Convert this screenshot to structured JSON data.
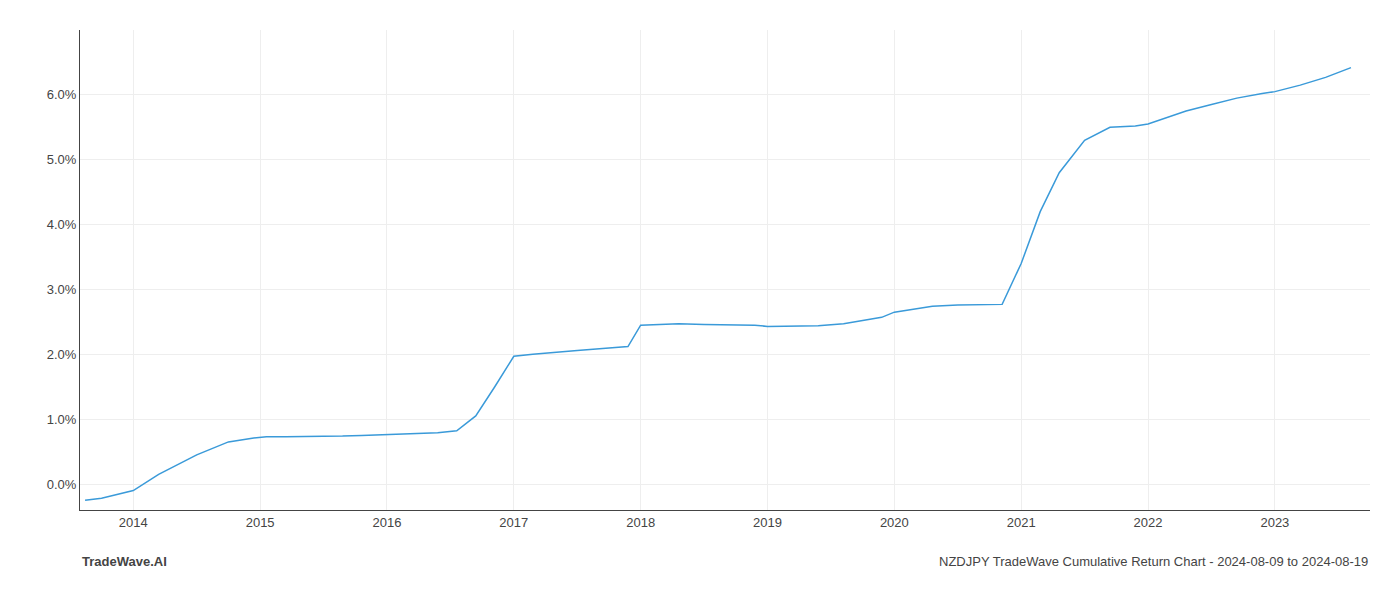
{
  "chart_data": {
    "type": "line",
    "x": [
      2013.62,
      2013.75,
      2014.0,
      2014.2,
      2014.5,
      2014.75,
      2014.95,
      2015.05,
      2015.2,
      2015.35,
      2015.5,
      2015.65,
      2015.8,
      2016.0,
      2016.2,
      2016.4,
      2016.55,
      2016.7,
      2016.85,
      2017.0,
      2017.15,
      2017.3,
      2017.5,
      2017.7,
      2017.9,
      2018.0,
      2018.15,
      2018.3,
      2018.5,
      2018.7,
      2018.9,
      2019.0,
      2019.2,
      2019.4,
      2019.6,
      2019.75,
      2019.9,
      2020.0,
      2020.1,
      2020.2,
      2020.3,
      2020.5,
      2020.7,
      2020.85,
      2021.0,
      2021.15,
      2021.3,
      2021.5,
      2021.7,
      2021.9,
      2022.0,
      2022.15,
      2022.3,
      2022.5,
      2022.7,
      2022.9,
      2023.0,
      2023.2,
      2023.4,
      2023.6
    ],
    "values": [
      -0.25,
      -0.22,
      -0.1,
      0.15,
      0.45,
      0.65,
      0.71,
      0.73,
      0.73,
      0.73,
      0.74,
      0.74,
      0.75,
      0.76,
      0.77,
      0.79,
      0.82,
      1.05,
      1.5,
      1.97,
      2.0,
      2.03,
      2.06,
      2.09,
      2.12,
      2.45,
      2.46,
      2.47,
      2.46,
      2.45,
      2.45,
      2.43,
      2.44,
      2.44,
      2.47,
      2.52,
      2.57,
      2.65,
      2.68,
      2.71,
      2.74,
      2.76,
      2.76,
      2.77,
      3.4,
      4.2,
      4.8,
      5.3,
      5.5,
      5.52,
      5.55,
      5.65,
      5.75,
      5.85,
      5.95,
      6.02,
      6.05,
      6.15,
      6.27,
      6.42
    ],
    "color": "#3a9ad9",
    "xlim": [
      2013.58,
      2023.75
    ],
    "xticks": [
      2014,
      2015,
      2016,
      2017,
      2018,
      2019,
      2020,
      2021,
      2022,
      2023
    ],
    "ylim": [
      -0.4,
      7.0
    ],
    "yticks": [
      {
        "value": 0.0,
        "label": "0.0%"
      },
      {
        "value": 1.0,
        "label": "1.0%"
      },
      {
        "value": 2.0,
        "label": "2.0%"
      },
      {
        "value": 3.0,
        "label": "3.0%"
      },
      {
        "value": 4.0,
        "label": "4.0%"
      },
      {
        "value": 5.0,
        "label": "5.0%"
      },
      {
        "value": 6.0,
        "label": "6.0%"
      }
    ],
    "grid": true,
    "annotations": [
      "TradeWave.AI",
      "NZDJPY TradeWave Cumulative Return Chart - 2024-08-09 to 2024-08-19"
    ]
  }
}
